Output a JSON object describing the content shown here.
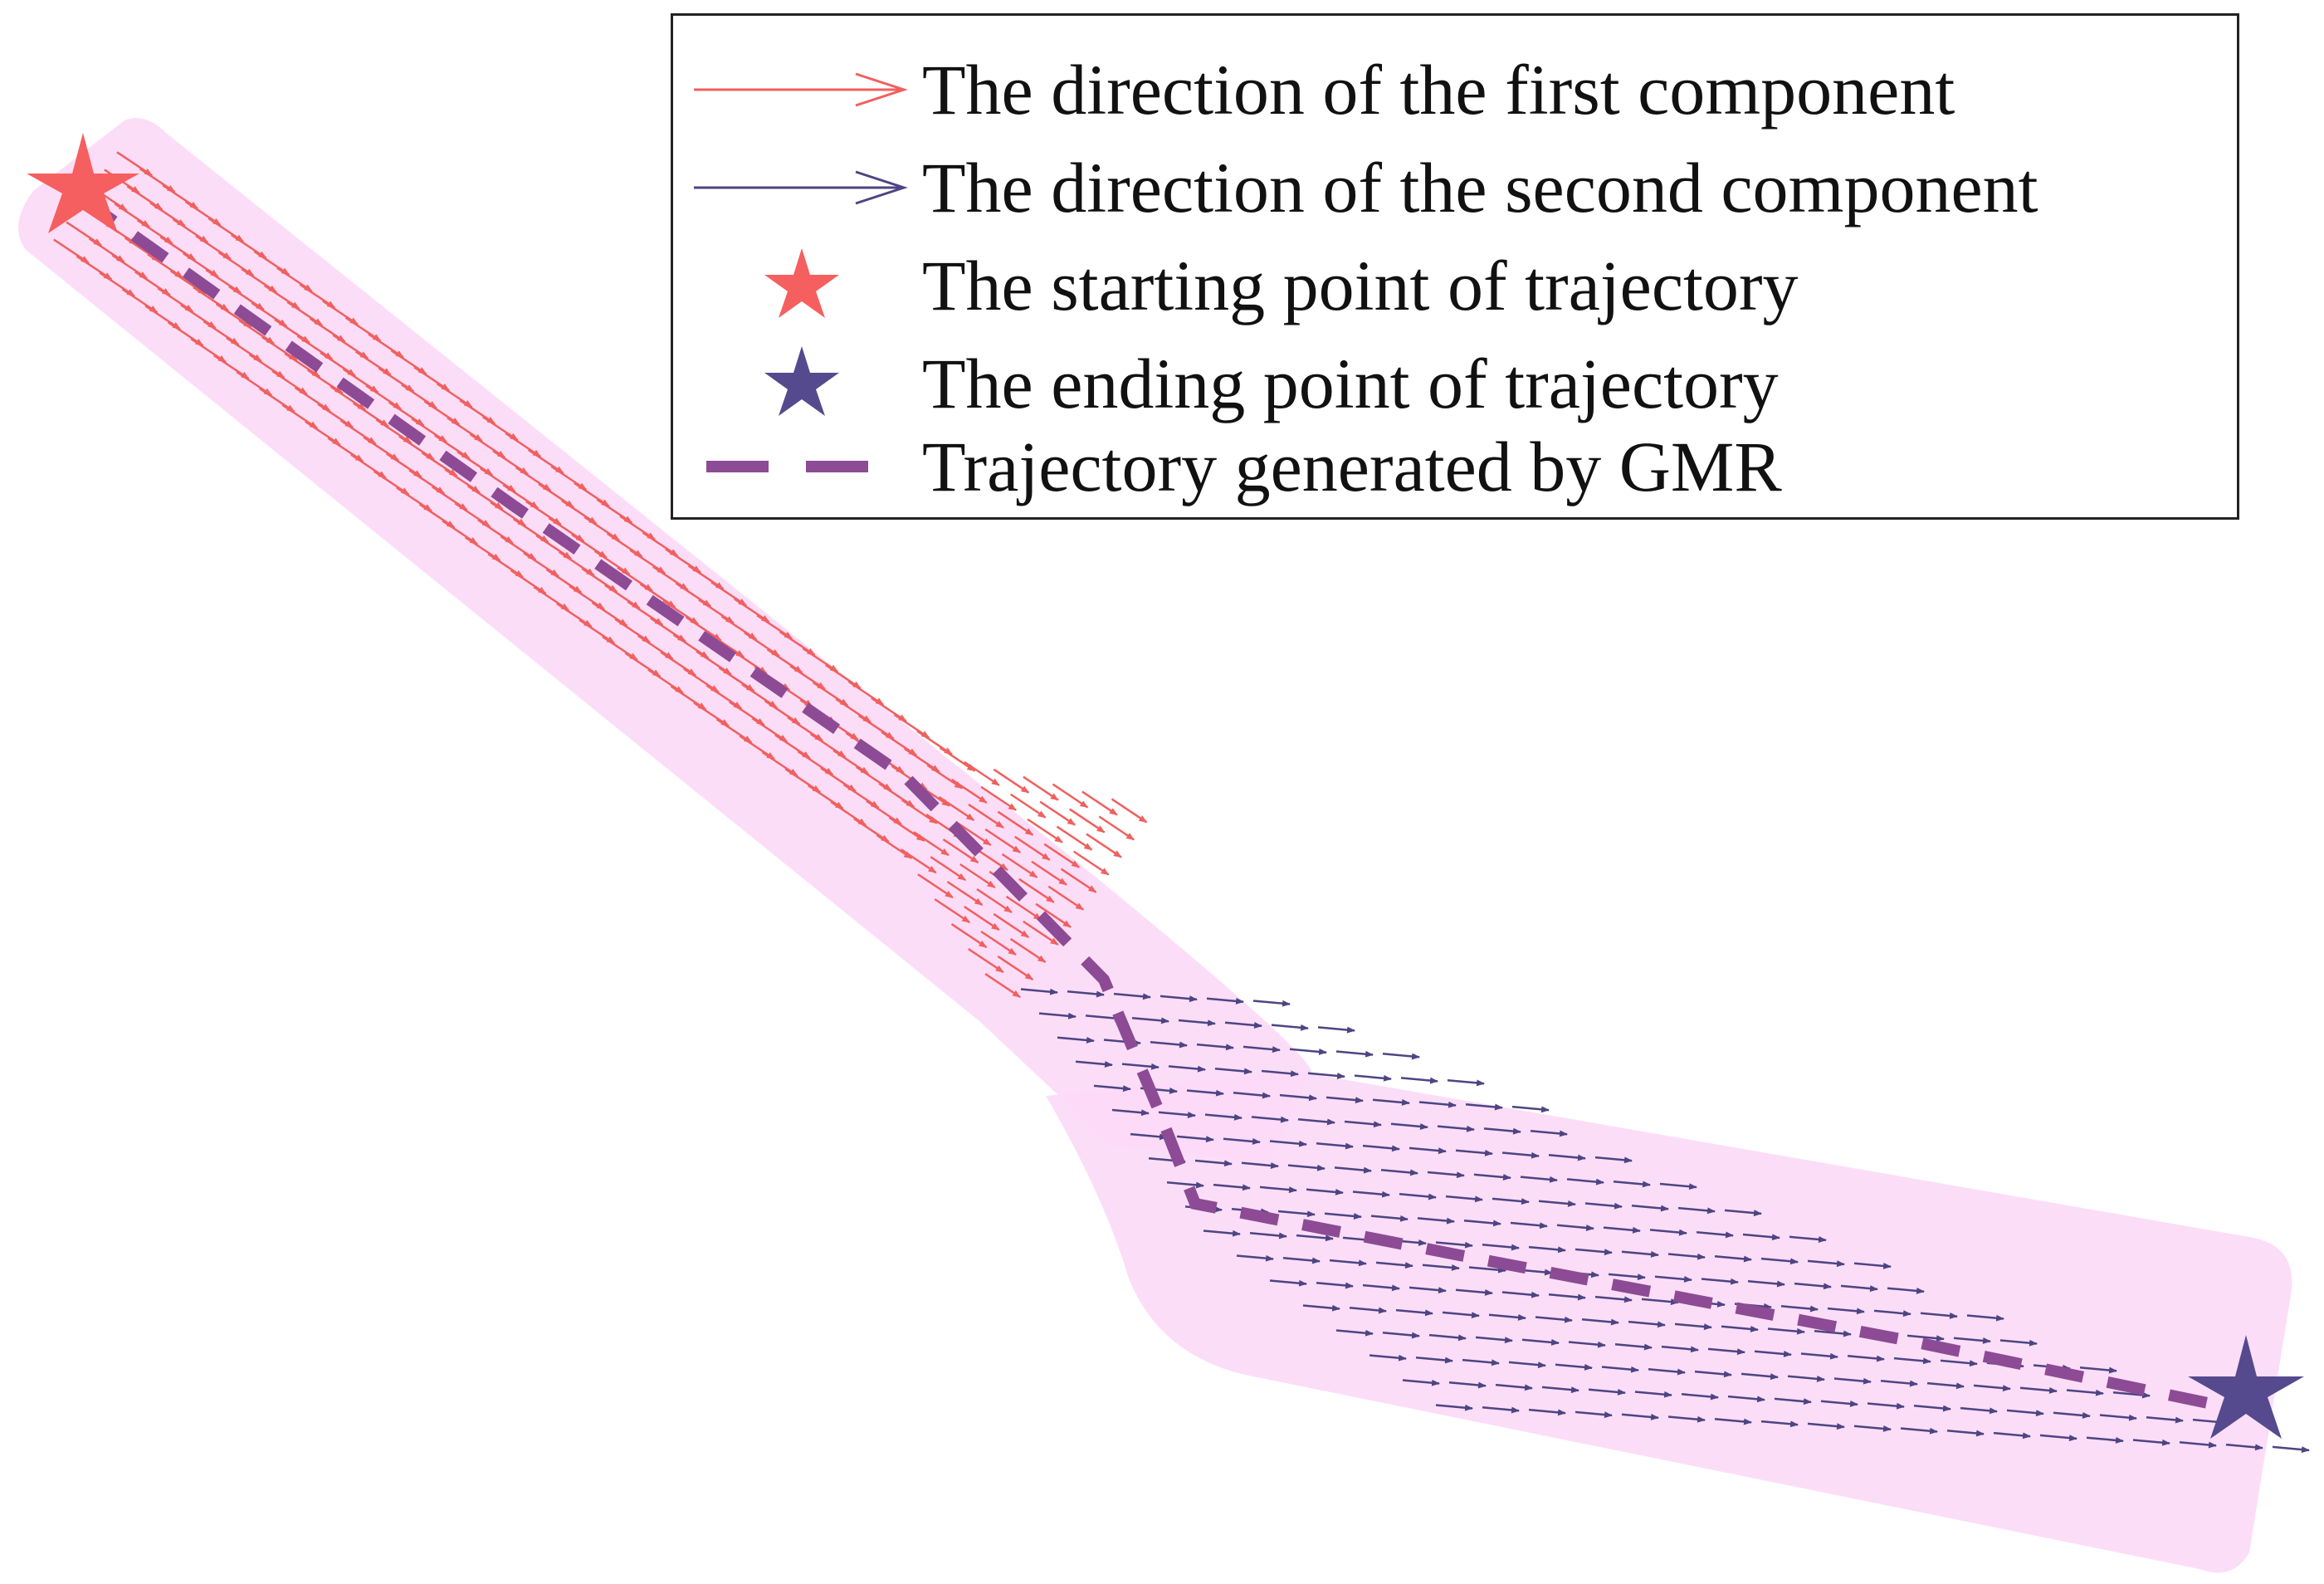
{
  "colors": {
    "region_fill": "#fcd9f7",
    "first_component": "#f0605f",
    "second_component": "#4d4583",
    "start_star": "#f55f5f",
    "end_star": "#544a8d",
    "gmr_trajectory": "#8c4b94",
    "legend_border": "#222222"
  },
  "legend": {
    "items": [
      {
        "label": "The direction of the first component",
        "symbol": "open-arrow",
        "color": "#f0605f"
      },
      {
        "label": "The direction of the second component",
        "symbol": "open-arrow",
        "color": "#4d4583"
      },
      {
        "label": "The starting point of trajectory",
        "symbol": "star",
        "color": "#f55f5f"
      },
      {
        "label": "The ending point of trajectory",
        "symbol": "star",
        "color": "#544a8d"
      },
      {
        "label": "Trajectory generated by GMR",
        "symbol": "dashed-line",
        "color": "#8c4b94"
      }
    ]
  }
}
